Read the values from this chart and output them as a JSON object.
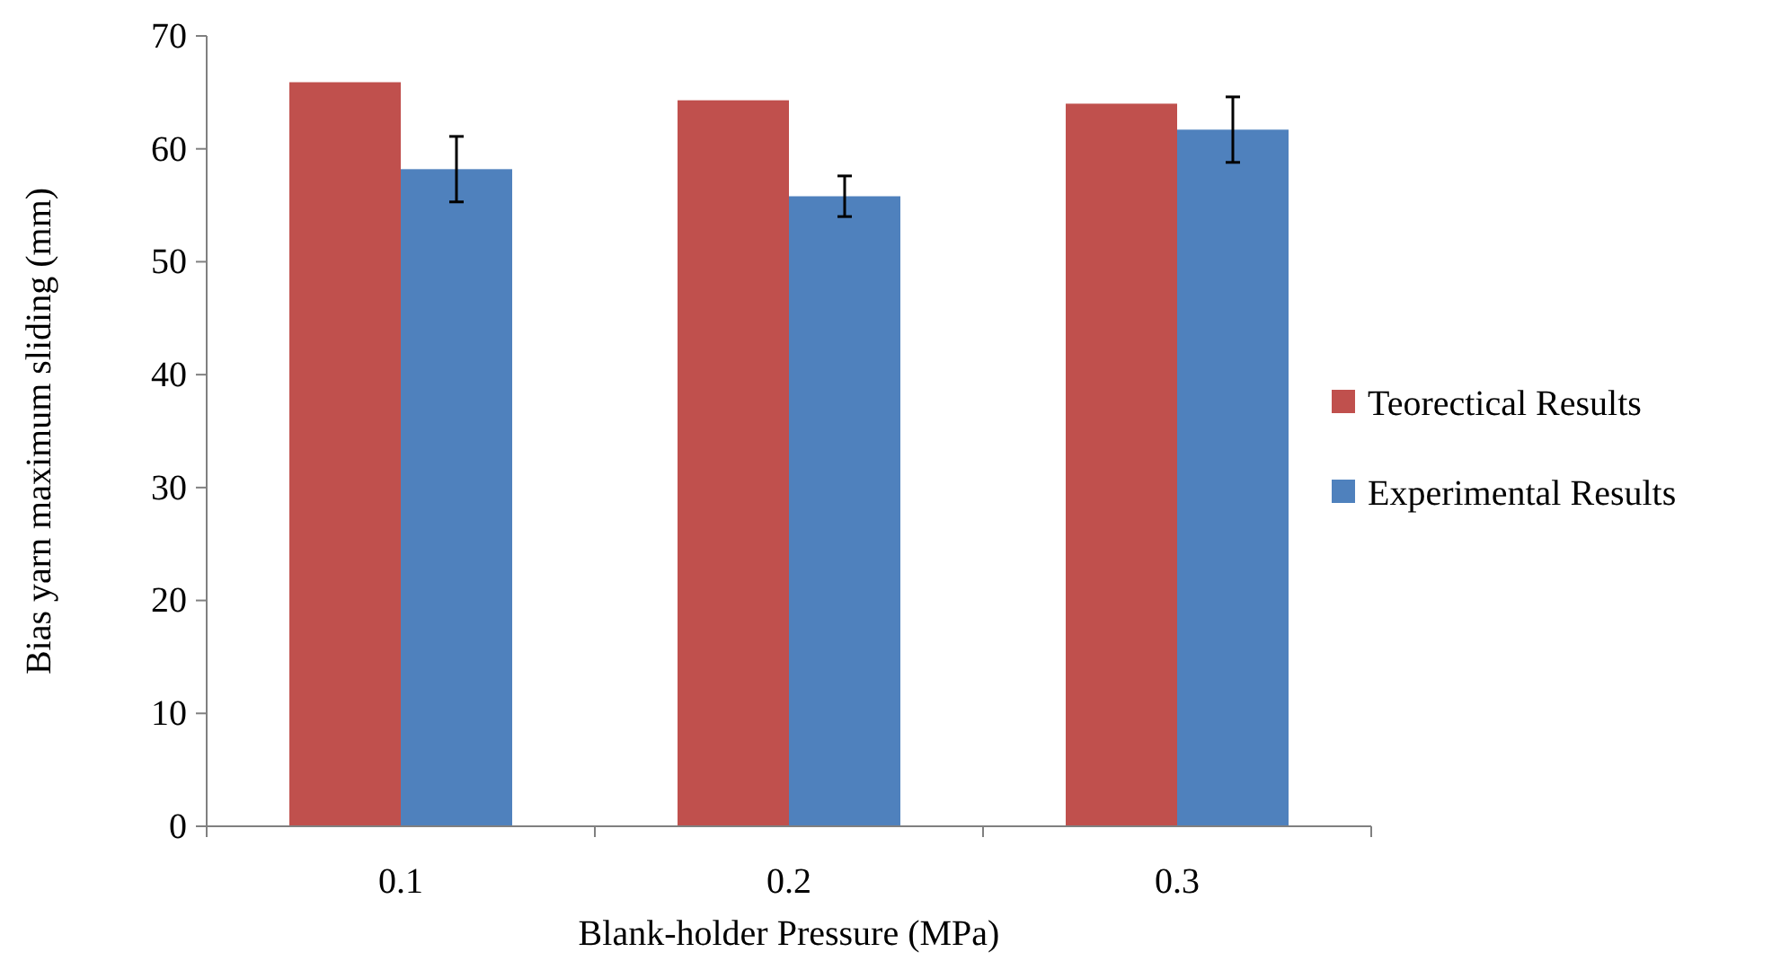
{
  "chart_data": {
    "type": "bar",
    "xlabel": "Blank-holder Pressure (MPa)",
    "ylabel": "Bias yarn maximum sliding (mm)",
    "categories": [
      "0.1",
      "0.2",
      "0.3"
    ],
    "series": [
      {
        "name": "Teorectical Results",
        "color": "#c0504d",
        "values": [
          65.9,
          64.3,
          64.0
        ]
      },
      {
        "name": "Experimental Results",
        "color": "#4f81bd",
        "values": [
          58.2,
          55.8,
          61.7
        ],
        "errors": [
          2.9,
          1.8,
          2.9
        ]
      }
    ],
    "ylim": [
      0,
      70
    ],
    "yticks": [
      0,
      10,
      20,
      30,
      40,
      50,
      60,
      70
    ],
    "grid": false,
    "legend": "right"
  }
}
